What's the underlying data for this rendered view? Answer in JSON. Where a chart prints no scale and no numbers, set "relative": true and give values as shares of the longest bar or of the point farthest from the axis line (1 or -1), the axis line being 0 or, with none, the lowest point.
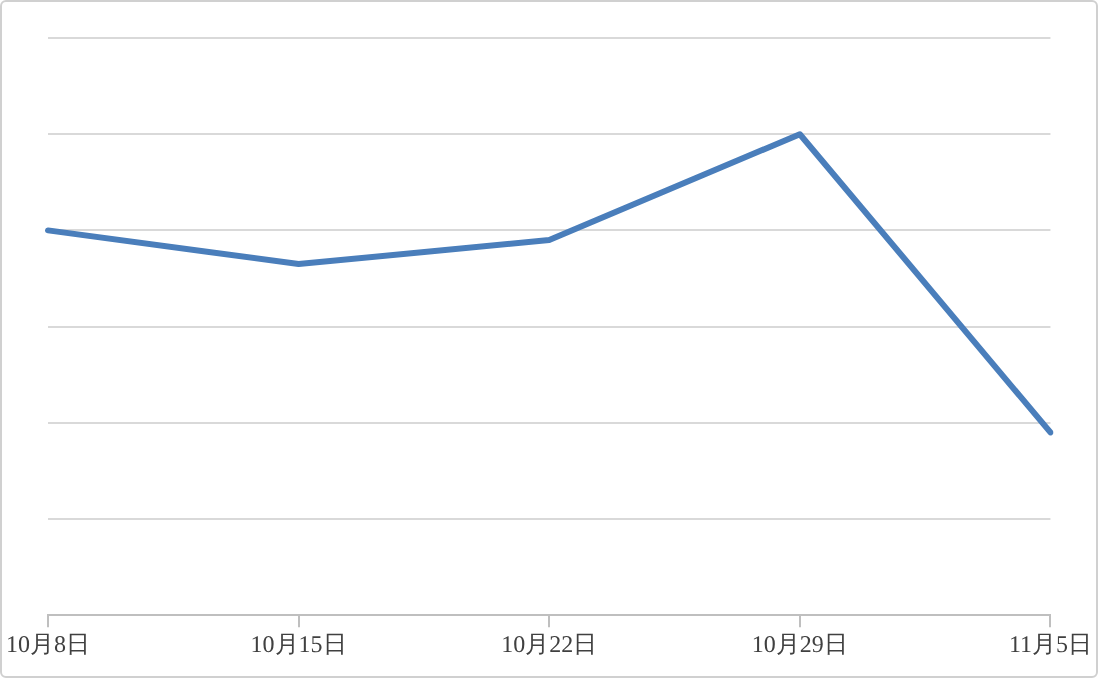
{
  "chart_data": {
    "type": "line",
    "relative": true,
    "grid": "y",
    "legend": false,
    "marker": "none",
    "line_style": "solid",
    "categories": [
      "10月8日",
      "10月15日",
      "10月22日",
      "10月29日",
      "11月5日"
    ],
    "series": [
      {
        "color": "#4a7ebb",
        "values": [
          0.8,
          0.73,
          0.78,
          1,
          0.38
        ]
      }
    ]
  }
}
